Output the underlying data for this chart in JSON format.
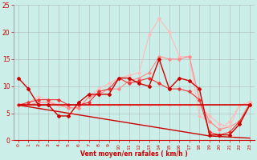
{
  "x": [
    0,
    1,
    2,
    3,
    4,
    5,
    6,
    7,
    8,
    9,
    10,
    11,
    12,
    13,
    14,
    15,
    16,
    17,
    18,
    19,
    20,
    21,
    22,
    23
  ],
  "line_hflat": [
    6.5,
    6.5,
    6.5,
    6.5,
    6.5,
    6.5,
    6.5,
    6.5,
    6.5,
    6.5,
    6.5,
    6.5,
    6.5,
    6.5,
    6.5,
    6.5,
    6.5,
    6.5,
    6.5,
    6.5,
    6.5,
    6.5,
    6.5,
    6.5
  ],
  "line_descend": [
    6.5,
    6.2,
    5.9,
    5.6,
    5.3,
    5.0,
    4.7,
    4.4,
    4.1,
    3.8,
    3.5,
    3.2,
    2.9,
    2.6,
    2.3,
    2.0,
    1.7,
    1.4,
    1.1,
    0.8,
    0.7,
    0.6,
    0.5,
    0.4
  ],
  "line_dark1": [
    11.5,
    9.5,
    6.5,
    6.5,
    4.5,
    4.5,
    7.0,
    8.5,
    8.5,
    8.5,
    11.5,
    11.5,
    10.5,
    10.0,
    15.0,
    9.5,
    11.5,
    11.0,
    9.5,
    1.0,
    1.0,
    1.0,
    3.0,
    6.5
  ],
  "line_med1": [
    6.5,
    7.0,
    7.5,
    7.5,
    7.5,
    6.5,
    6.5,
    7.0,
    9.0,
    9.5,
    11.5,
    10.5,
    11.0,
    11.5,
    10.5,
    9.5,
    9.5,
    9.0,
    7.5,
    1.5,
    1.0,
    1.5,
    3.5,
    6.5
  ],
  "line_light1": [
    6.5,
    6.5,
    7.0,
    7.0,
    6.5,
    6.0,
    6.0,
    8.0,
    8.5,
    9.5,
    9.5,
    11.0,
    11.5,
    12.5,
    15.5,
    15.0,
    15.0,
    15.5,
    7.5,
    3.5,
    2.0,
    2.5,
    3.5,
    7.0
  ],
  "line_lightest": [
    6.5,
    7.0,
    8.0,
    7.5,
    6.5,
    6.0,
    6.0,
    8.0,
    9.5,
    10.5,
    11.5,
    12.0,
    12.5,
    19.5,
    22.5,
    20.0,
    15.5,
    15.5,
    4.5,
    3.5,
    2.0,
    3.5,
    6.5,
    7.0
  ],
  "line_pink_low": [
    6.5,
    6.5,
    6.5,
    6.5,
    6.5,
    6.5,
    6.5,
    6.5,
    6.5,
    6.5,
    6.5,
    6.5,
    6.5,
    6.5,
    6.5,
    6.5,
    6.5,
    6.5,
    6.5,
    4.5,
    3.0,
    2.5,
    6.5,
    7.0
  ],
  "xlabel": "Vent moyen/en rafales ( km/h )",
  "ylim": [
    0,
    25
  ],
  "xlim_min": -0.5,
  "xlim_max": 23.5,
  "yticks": [
    0,
    5,
    10,
    15,
    20,
    25
  ],
  "xticks": [
    0,
    1,
    2,
    3,
    4,
    5,
    6,
    7,
    8,
    9,
    10,
    11,
    12,
    13,
    14,
    15,
    16,
    17,
    18,
    19,
    20,
    21,
    22,
    23
  ],
  "bg_color": "#cceee8",
  "grid_color": "#aaaaaa",
  "color_dark_red": "#cc0000",
  "color_med_red": "#ee3333",
  "color_light_red": "#ff8888",
  "color_lightest_red": "#ffbbbb",
  "color_pink": "#ff9999"
}
